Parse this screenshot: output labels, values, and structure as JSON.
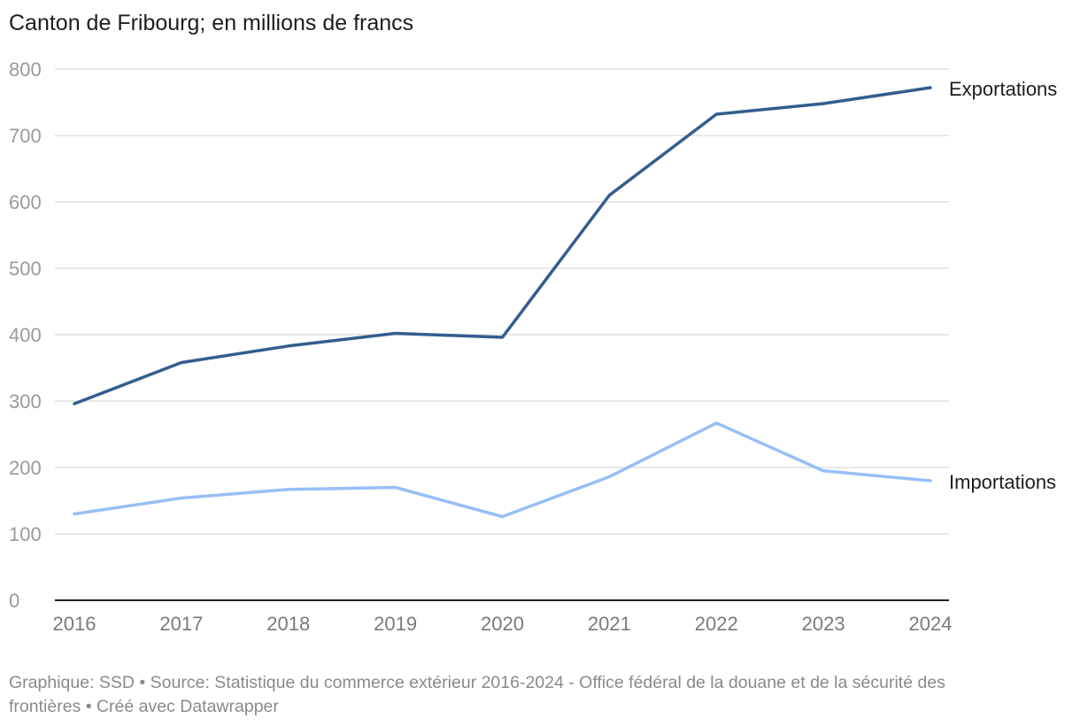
{
  "title": "Canton de Fribourg; en millions de francs",
  "footer": {
    "line1": "Graphique: SSD • Source: Statistique du commerce extérieur 2016-2024 - Office fédéral de la douane et de la sécurité des",
    "line2": "frontières • Créé avec Datawrapper"
  },
  "colors": {
    "exportations": "#335d8e",
    "importations": "#96bff5",
    "grid": "#e1e1e1",
    "axis": "#222222"
  },
  "chart_data": {
    "type": "line",
    "title": "Canton de Fribourg; en millions de francs",
    "xlabel": "",
    "ylabel": "",
    "x": [
      2016,
      2017,
      2018,
      2019,
      2020,
      2021,
      2022,
      2023,
      2024
    ],
    "ylim": [
      0,
      800
    ],
    "yticks": [
      0,
      100,
      200,
      300,
      400,
      500,
      600,
      700,
      800
    ],
    "series": [
      {
        "name": "Exportations",
        "values": [
          296,
          358,
          383,
          402,
          396,
          610,
          732,
          748,
          772
        ]
      },
      {
        "name": "Importations",
        "values": [
          130,
          154,
          167,
          170,
          126,
          186,
          267,
          195,
          180
        ]
      }
    ],
    "legend": "direct labels at line ends (right)"
  }
}
